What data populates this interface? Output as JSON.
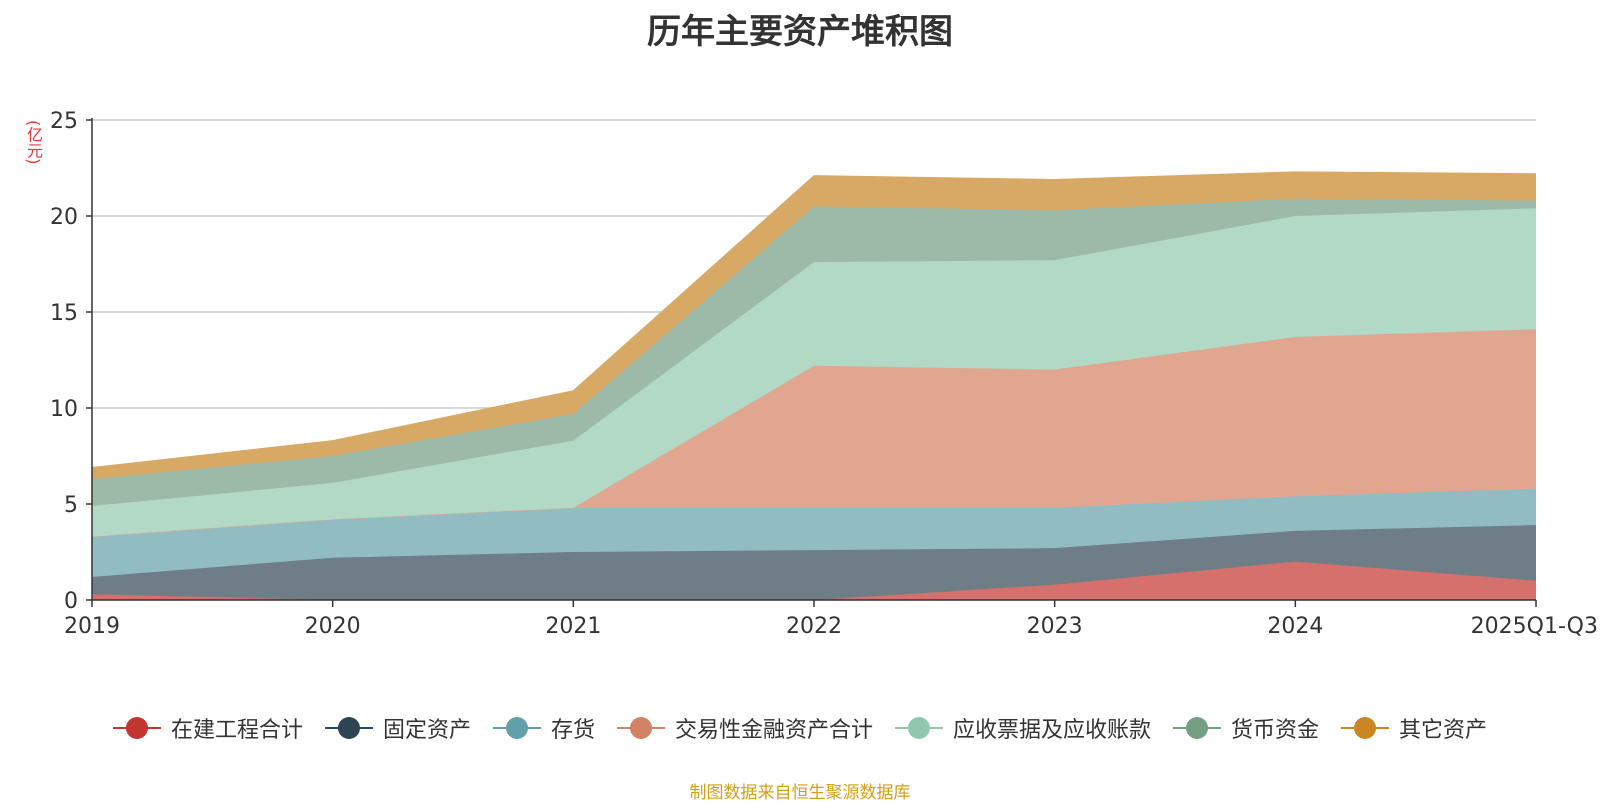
{
  "chart_data": {
    "type": "area",
    "stacked": true,
    "title": "历年主要资产堆积图",
    "ylabel": "(亿元)",
    "xlabel": "",
    "ylim": [
      0,
      25
    ],
    "yticks": [
      0,
      5,
      10,
      15,
      20,
      25
    ],
    "categories": [
      "2019",
      "2020",
      "2021",
      "2022",
      "2023",
      "2024",
      "2025Q1-Q3"
    ],
    "grid": true,
    "legend_position": "bottom",
    "series": [
      {
        "name": "在建工程合计",
        "color": "#c23531",
        "fill": "#d5706d",
        "values": [
          0.3,
          0.0,
          0.0,
          0.0,
          0.8,
          2.0,
          1.0
        ]
      },
      {
        "name": "固定资产",
        "color": "#2f4554",
        "fill": "#6f7d87",
        "values": [
          0.9,
          2.2,
          2.5,
          2.6,
          1.9,
          1.6,
          2.9
        ]
      },
      {
        "name": "存货",
        "color": "#61a0a8",
        "fill": "#90bcc2",
        "values": [
          2.1,
          2.0,
          2.3,
          2.2,
          2.1,
          1.8,
          1.9
        ]
      },
      {
        "name": "交易性金融资产合计",
        "color": "#d48265",
        "fill": "#e0a690",
        "values": [
          0.0,
          0.0,
          0.0,
          7.4,
          7.2,
          8.3,
          8.3
        ]
      },
      {
        "name": "应收票据及应收账款",
        "color": "#91c7ae",
        "fill": "#b2d8c6",
        "values": [
          1.6,
          1.9,
          3.5,
          5.4,
          5.7,
          6.3,
          6.3
        ]
      },
      {
        "name": "货币资金",
        "color": "#749f83",
        "fill": "#9db9a7",
        "values": [
          1.4,
          1.4,
          1.4,
          2.9,
          2.6,
          0.9,
          0.4
        ]
      },
      {
        "name": "其它资产",
        "color": "#ca8622",
        "fill": "#d7a965",
        "values": [
          0.6,
          0.8,
          1.2,
          1.6,
          1.6,
          1.4,
          1.4
        ]
      }
    ]
  },
  "footer": {
    "source_note": "制图数据来自恒生聚源数据库"
  }
}
